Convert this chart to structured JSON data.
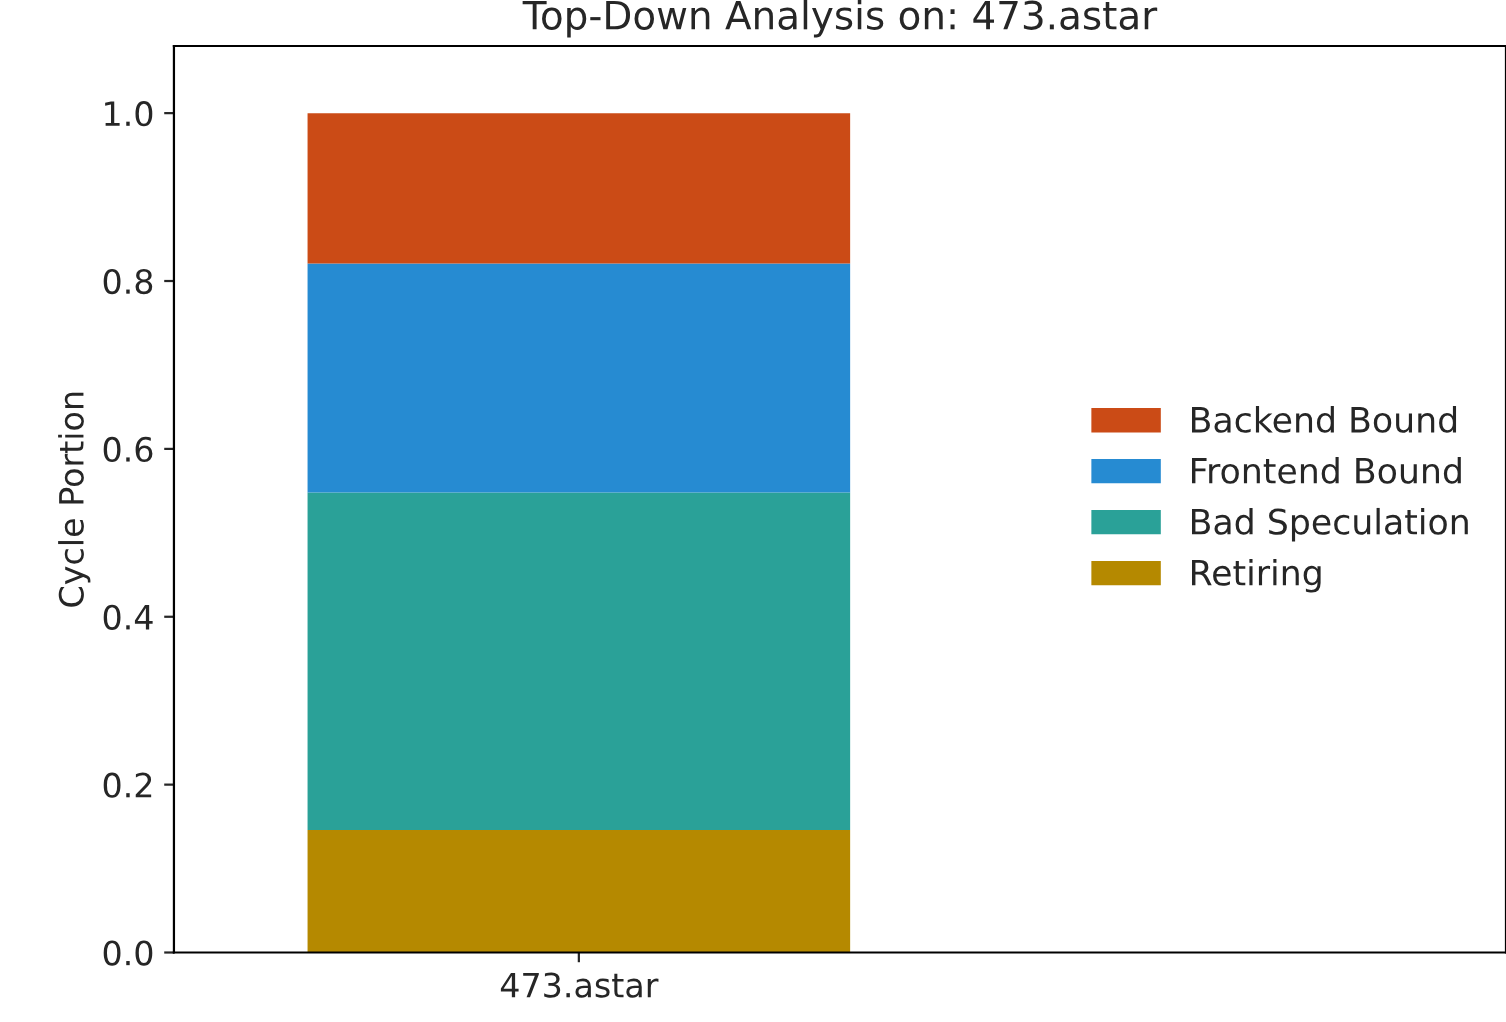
{
  "chart_data": {
    "type": "bar",
    "title": "Top-Down Analysis on: 473.astar",
    "ylabel": "Cycle Portion",
    "categories": [
      "473.astar"
    ],
    "stacked": true,
    "legend": "right",
    "ylim": [
      0,
      1.08
    ],
    "yticks": [
      {
        "value": 0,
        "label": "0.0"
      },
      0.2,
      0.4,
      0.6,
      0.8,
      {
        "value": 1,
        "label": "1.0"
      }
    ],
    "series": [
      {
        "name": "Retiring",
        "color": "#b58900",
        "values": [
          0.146
        ]
      },
      {
        "name": "Bad Speculation",
        "color": "#2aa198",
        "values": [
          0.402
        ]
      },
      {
        "name": "Frontend Bound",
        "color": "#268bd2",
        "values": [
          0.273
        ]
      },
      {
        "name": "Backend Bound",
        "color": "#cb4b16",
        "values": [
          0.179
        ]
      }
    ]
  }
}
